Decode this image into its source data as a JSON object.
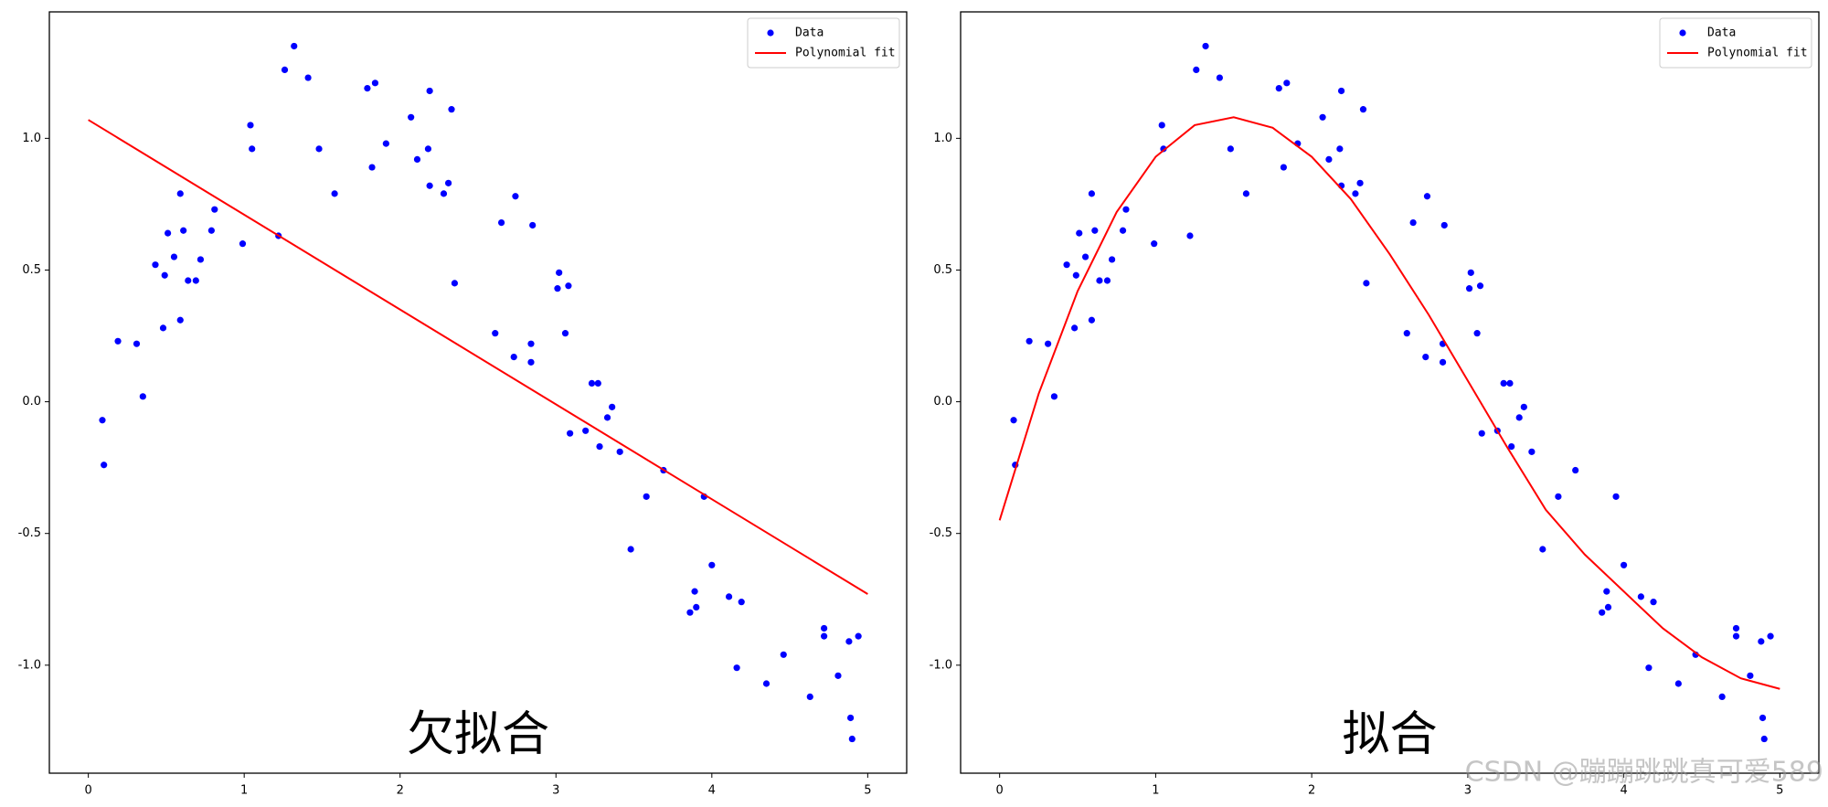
{
  "chart_data": [
    {
      "type": "scatter",
      "annotation": "欠拟合",
      "xlim": [
        -0.25,
        5.25
      ],
      "ylim": [
        -1.41,
        1.48
      ],
      "xticks": [
        0,
        1,
        2,
        3,
        4,
        5
      ],
      "yticks": [
        {
          "value": -1,
          "label": "-1.0"
        },
        -0.5,
        {
          "value": 0,
          "label": "0.0"
        },
        0.5,
        {
          "value": 1,
          "label": "1.0"
        }
      ],
      "legend": "upper right",
      "series": [
        {
          "name": "Data",
          "color": "#0000ff",
          "mode": "markers",
          "x": [
            0.09,
            0.1,
            0.19,
            0.31,
            0.35,
            0.43,
            0.48,
            0.49,
            0.51,
            0.55,
            0.59,
            0.59,
            0.61,
            0.64,
            0.69,
            0.72,
            0.79,
            0.81,
            0.99,
            1.04,
            1.05,
            1.22,
            1.26,
            1.32,
            1.41,
            1.48,
            1.58,
            1.79,
            1.82,
            1.84,
            1.91,
            2.07,
            2.11,
            2.19,
            2.18,
            2.19,
            2.28,
            2.31,
            2.33,
            2.35,
            2.61,
            2.65,
            2.73,
            2.74,
            2.84,
            2.85,
            2.84,
            3.02,
            3.01,
            3.06,
            3.08,
            3.09,
            3.19,
            3.23,
            3.27,
            3.28,
            3.33,
            3.36,
            3.41,
            3.48,
            3.58,
            3.69,
            3.86,
            3.89,
            3.9,
            3.95,
            4.0,
            4.11,
            4.16,
            4.19,
            4.35,
            4.46,
            4.63,
            4.72,
            4.72,
            4.81,
            4.88,
            4.89,
            4.9,
            4.94
          ],
          "values": [
            -0.07,
            -0.24,
            0.23,
            0.22,
            0.02,
            0.52,
            0.28,
            0.48,
            0.64,
            0.55,
            0.31,
            0.79,
            0.65,
            0.46,
            0.46,
            0.54,
            0.65,
            0.73,
            0.6,
            1.05,
            0.96,
            0.63,
            1.26,
            1.35,
            1.23,
            0.96,
            0.79,
            1.19,
            0.89,
            1.21,
            0.98,
            1.08,
            0.92,
            1.18,
            0.96,
            0.82,
            0.79,
            0.83,
            1.11,
            0.45,
            0.26,
            0.68,
            0.17,
            0.78,
            0.22,
            0.67,
            0.15,
            0.49,
            0.43,
            0.26,
            0.44,
            -0.12,
            -0.11,
            0.07,
            0.07,
            -0.17,
            -0.06,
            -0.02,
            -0.19,
            -0.56,
            -0.36,
            -0.26,
            -0.8,
            -0.72,
            -0.78,
            -0.36,
            -0.62,
            -0.74,
            -1.01,
            -0.76,
            -1.07,
            -0.96,
            -1.12,
            -0.86,
            -0.89,
            -1.04,
            -0.91,
            -1.2,
            -1.28,
            -0.89
          ]
        },
        {
          "name": "Polynomial fit",
          "color": "#ff0000",
          "mode": "line",
          "x": [
            0,
            5
          ],
          "values": [
            1.07,
            -0.73
          ]
        }
      ]
    },
    {
      "type": "scatter",
      "annotation": "拟合",
      "xlim": [
        -0.25,
        5.25
      ],
      "ylim": [
        -1.41,
        1.48
      ],
      "xticks": [
        0,
        1,
        2,
        3,
        4,
        5
      ],
      "yticks": [
        {
          "value": -1,
          "label": "-1.0"
        },
        -0.5,
        {
          "value": 0,
          "label": "0.0"
        },
        0.5,
        {
          "value": 1,
          "label": "1.0"
        }
      ],
      "legend": "upper right",
      "series": [
        {
          "name": "Data",
          "color": "#0000ff",
          "mode": "markers",
          "x": [
            0.09,
            0.1,
            0.19,
            0.31,
            0.35,
            0.43,
            0.48,
            0.49,
            0.51,
            0.55,
            0.59,
            0.59,
            0.61,
            0.64,
            0.69,
            0.72,
            0.79,
            0.81,
            0.99,
            1.04,
            1.05,
            1.22,
            1.26,
            1.32,
            1.41,
            1.48,
            1.58,
            1.79,
            1.82,
            1.84,
            1.91,
            2.07,
            2.11,
            2.19,
            2.18,
            2.19,
            2.28,
            2.31,
            2.33,
            2.35,
            2.61,
            2.65,
            2.73,
            2.74,
            2.84,
            2.85,
            2.84,
            3.02,
            3.01,
            3.06,
            3.08,
            3.09,
            3.19,
            3.23,
            3.27,
            3.28,
            3.33,
            3.36,
            3.41,
            3.48,
            3.58,
            3.69,
            3.86,
            3.89,
            3.9,
            3.95,
            4.0,
            4.11,
            4.16,
            4.19,
            4.35,
            4.46,
            4.63,
            4.72,
            4.72,
            4.81,
            4.88,
            4.89,
            4.9,
            4.94
          ],
          "values": [
            -0.07,
            -0.24,
            0.23,
            0.22,
            0.02,
            0.52,
            0.28,
            0.48,
            0.64,
            0.55,
            0.31,
            0.79,
            0.65,
            0.46,
            0.46,
            0.54,
            0.65,
            0.73,
            0.6,
            1.05,
            0.96,
            0.63,
            1.26,
            1.35,
            1.23,
            0.96,
            0.79,
            1.19,
            0.89,
            1.21,
            0.98,
            1.08,
            0.92,
            1.18,
            0.96,
            0.82,
            0.79,
            0.83,
            1.11,
            0.45,
            0.26,
            0.68,
            0.17,
            0.78,
            0.22,
            0.67,
            0.15,
            0.49,
            0.43,
            0.26,
            0.44,
            -0.12,
            -0.11,
            0.07,
            0.07,
            -0.17,
            -0.06,
            -0.02,
            -0.19,
            -0.56,
            -0.36,
            -0.26,
            -0.8,
            -0.72,
            -0.78,
            -0.36,
            -0.62,
            -0.74,
            -1.01,
            -0.76,
            -1.07,
            -0.96,
            -1.12,
            -0.86,
            -0.89,
            -1.04,
            -0.91,
            -1.2,
            -1.28,
            -0.89
          ]
        },
        {
          "name": "Polynomial fit",
          "color": "#ff0000",
          "mode": "line",
          "x": [
            0,
            0.25,
            0.5,
            0.75,
            1.0,
            1.25,
            1.5,
            1.75,
            2.0,
            2.25,
            2.5,
            2.75,
            3.0,
            3.25,
            3.5,
            3.75,
            4.0,
            4.25,
            4.5,
            4.75,
            5.0
          ],
          "values": [
            -0.45,
            0.03,
            0.42,
            0.72,
            0.93,
            1.05,
            1.08,
            1.04,
            0.93,
            0.77,
            0.56,
            0.33,
            0.08,
            -0.17,
            -0.41,
            -0.58,
            -0.72,
            -0.86,
            -0.97,
            -1.05,
            -1.09
          ]
        }
      ]
    }
  ],
  "watermark": "CSDN @蹦蹦跳跳真可爱589"
}
